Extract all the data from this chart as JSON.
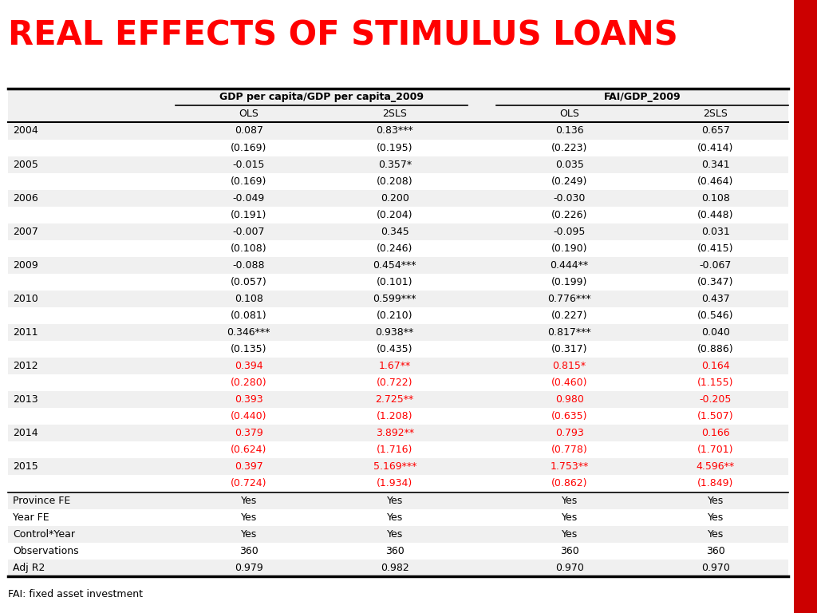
{
  "title": "REAL EFFECTS OF STIMULUS LOANS",
  "title_color": "#FF0000",
  "background_color": "#FFFFFF",
  "col_header1": "GDP per capita/GDP per capita_2009",
  "col_header2": "FAI/GDP_2009",
  "sub_headers": [
    "OLS",
    "2SLS",
    "OLS",
    "2SLS"
  ],
  "footer": "FAI: fixed asset investment",
  "rows": [
    {
      "label": "2004",
      "vals": [
        "0.087",
        "0.83***",
        "0.136",
        "0.657"
      ],
      "red": false
    },
    {
      "label": "",
      "vals": [
        "(0.169)",
        "(0.195)",
        "(0.223)",
        "(0.414)"
      ],
      "red": false
    },
    {
      "label": "2005",
      "vals": [
        "-0.015",
        "0.357*",
        "0.035",
        "0.341"
      ],
      "red": false
    },
    {
      "label": "",
      "vals": [
        "(0.169)",
        "(0.208)",
        "(0.249)",
        "(0.464)"
      ],
      "red": false
    },
    {
      "label": "2006",
      "vals": [
        "-0.049",
        "0.200",
        "-0.030",
        "0.108"
      ],
      "red": false
    },
    {
      "label": "",
      "vals": [
        "(0.191)",
        "(0.204)",
        "(0.226)",
        "(0.448)"
      ],
      "red": false
    },
    {
      "label": "2007",
      "vals": [
        "-0.007",
        "0.345",
        "-0.095",
        "0.031"
      ],
      "red": false
    },
    {
      "label": "",
      "vals": [
        "(0.108)",
        "(0.246)",
        "(0.190)",
        "(0.415)"
      ],
      "red": false
    },
    {
      "label": "2009",
      "vals": [
        "-0.088",
        "0.454***",
        "0.444**",
        "-0.067"
      ],
      "red": false
    },
    {
      "label": "",
      "vals": [
        "(0.057)",
        "(0.101)",
        "(0.199)",
        "(0.347)"
      ],
      "red": false
    },
    {
      "label": "2010",
      "vals": [
        "0.108",
        "0.599***",
        "0.776***",
        "0.437"
      ],
      "red": false
    },
    {
      "label": "",
      "vals": [
        "(0.081)",
        "(0.210)",
        "(0.227)",
        "(0.546)"
      ],
      "red": false
    },
    {
      "label": "2011",
      "vals": [
        "0.346***",
        "0.938**",
        "0.817***",
        "0.040"
      ],
      "red": false
    },
    {
      "label": "",
      "vals": [
        "(0.135)",
        "(0.435)",
        "(0.317)",
        "(0.886)"
      ],
      "red": false
    },
    {
      "label": "2012",
      "vals": [
        "0.394",
        "1.67**",
        "0.815*",
        "0.164"
      ],
      "red": true
    },
    {
      "label": "",
      "vals": [
        "(0.280)",
        "(0.722)",
        "(0.460)",
        "(1.155)"
      ],
      "red": true
    },
    {
      "label": "2013",
      "vals": [
        "0.393",
        "2.725**",
        "0.980",
        "-0.205"
      ],
      "red": true
    },
    {
      "label": "",
      "vals": [
        "(0.440)",
        "(1.208)",
        "(0.635)",
        "(1.507)"
      ],
      "red": true
    },
    {
      "label": "2014",
      "vals": [
        "0.379",
        "3.892**",
        "0.793",
        "0.166"
      ],
      "red": true
    },
    {
      "label": "",
      "vals": [
        "(0.624)",
        "(1.716)",
        "(0.778)",
        "(1.701)"
      ],
      "red": true
    },
    {
      "label": "2015",
      "vals": [
        "0.397",
        "5.169***",
        "1.753**",
        "4.596**"
      ],
      "red": true
    },
    {
      "label": "",
      "vals": [
        "(0.724)",
        "(1.934)",
        "(0.862)",
        "(1.849)"
      ],
      "red": true
    },
    {
      "label": "Province FE",
      "vals": [
        "Yes",
        "Yes",
        "Yes",
        "Yes"
      ],
      "red": false
    },
    {
      "label": "Year FE",
      "vals": [
        "Yes",
        "Yes",
        "Yes",
        "Yes"
      ],
      "red": false
    },
    {
      "label": "Control*Year",
      "vals": [
        "Yes",
        "Yes",
        "Yes",
        "Yes"
      ],
      "red": false
    },
    {
      "label": "Observations",
      "vals": [
        "360",
        "360",
        "360",
        "360"
      ],
      "red": false
    },
    {
      "label": "Adj R2",
      "vals": [
        "0.979",
        "0.982",
        "0.970",
        "0.970"
      ],
      "red": false
    }
  ],
  "red_color": "#FF0000",
  "black_color": "#000000",
  "gray_bg_color": "#F0F0F0",
  "white_bg_color": "#FFFFFF",
  "sidebar_color": "#CC0000"
}
